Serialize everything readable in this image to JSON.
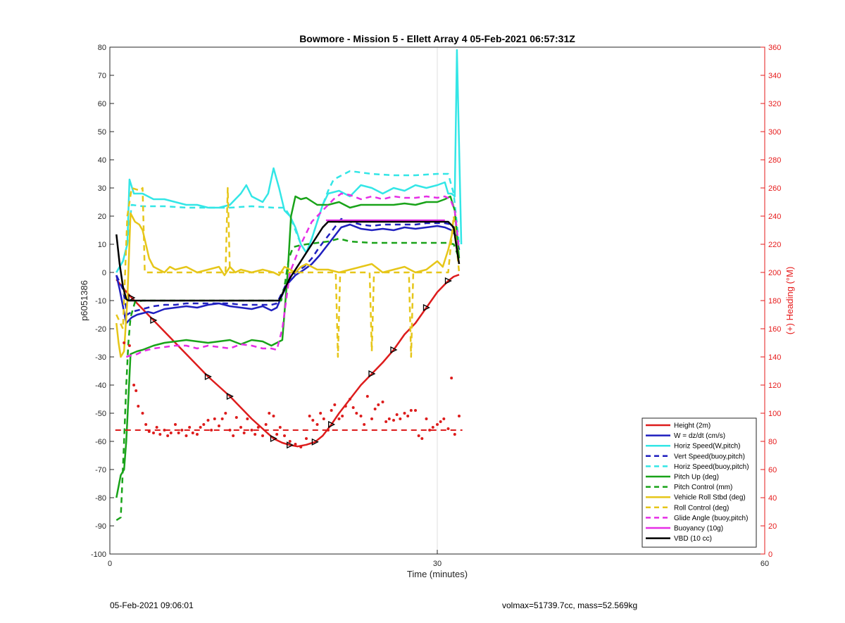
{
  "footer": {
    "left_text": "05-Feb-2021 09:06:01",
    "right_text": "volmax=51739.7cc, mass=52.569kg"
  },
  "chart_data": {
    "type": "line",
    "title": "Bowmore - Mission 5 - Ellett Array 4 05-Feb-2021 06:57:31Z",
    "xlabel": "Time (minutes)",
    "ylabel": "p6051386",
    "ylabel_right": "(+) Heading (°M)",
    "xlim": [
      0,
      60
    ],
    "ylim": [
      -100,
      80
    ],
    "ylim_right": [
      0,
      360
    ],
    "xticks": [
      0,
      30,
      60
    ],
    "yticks": [
      -100,
      -90,
      -80,
      -70,
      -60,
      -50,
      -40,
      -30,
      -20,
      -10,
      0,
      10,
      20,
      30,
      40,
      50,
      60,
      70,
      80
    ],
    "yticks_right": [
      0,
      20,
      40,
      60,
      80,
      100,
      120,
      140,
      160,
      180,
      200,
      220,
      240,
      260,
      280,
      300,
      320,
      340,
      360
    ],
    "grid": "x-only",
    "legend_position": "bottom-right",
    "colors": {
      "red": "#dd1c1c",
      "blue": "#1f1fbf",
      "cyan": "#33e6e6",
      "green": "#19a319",
      "yellow": "#e6c619",
      "magenta": "#e62ee6",
      "black": "#000000",
      "right_axis": "#e61a1a"
    },
    "series": [
      {
        "name": "Height (2m)",
        "color": "#dd1c1c",
        "style": "solid",
        "axis": "left",
        "x": [
          0.6,
          1.2,
          2.0,
          3.0,
          4.0,
          5.0,
          6.0,
          7.0,
          8.0,
          9.0,
          10.0,
          11.0,
          12.0,
          13.0,
          14.0,
          15.0,
          15.8,
          16.5,
          17.2,
          18.0,
          18.8,
          19.5,
          20.3,
          21.0,
          22.0,
          23.0,
          24.0,
          25.0,
          26.0,
          27.0,
          28.0,
          29.0,
          30.0,
          31.0,
          31.5,
          32.0
        ],
        "y": [
          -2.5,
          -5.5,
          -9,
          -13,
          -17,
          -21,
          -25,
          -29,
          -33,
          -37,
          -40.5,
          -44,
          -48,
          -52,
          -55.5,
          -59,
          -60.5,
          -61.3,
          -61.8,
          -61.2,
          -60.2,
          -58,
          -54,
          -50,
          -45,
          -40,
          -36,
          -32,
          -27.5,
          -22,
          -18,
          -12.5,
          -7,
          -3,
          -1.5,
          -0.8
        ]
      },
      {
        "name": "W = dz/dt (cm/s)",
        "color": "#1f1fbf",
        "style": "solid",
        "axis": "left",
        "x": [
          0.6,
          0.9,
          1.2,
          1.5,
          2.0,
          2.5,
          3.0,
          3.5,
          4.0,
          5.0,
          6.0,
          7.0,
          8.0,
          9.0,
          10.0,
          11.0,
          12.0,
          13.0,
          14.0,
          14.8,
          15.3,
          15.8,
          16.3,
          17.0,
          17.8,
          18.5,
          19.2,
          20.0,
          20.6,
          21.2,
          22.0,
          23.0,
          24.0,
          25.0,
          26.0,
          27.0,
          28.0,
          29.0,
          30.0,
          30.7,
          31.3,
          31.7,
          32.0
        ],
        "y": [
          -1,
          -6,
          -12,
          -18,
          -16,
          -15,
          -14.5,
          -14,
          -14.5,
          -13,
          -12.5,
          -12,
          -12.5,
          -11.5,
          -11,
          -12,
          -12.5,
          -13,
          -12,
          -13.5,
          -12.5,
          -8,
          -4,
          -1,
          1,
          3,
          6,
          10,
          13,
          16,
          17,
          15.5,
          15,
          15.5,
          15,
          16,
          15.5,
          16,
          16.5,
          16,
          15,
          13,
          8
        ]
      },
      {
        "name": "Horiz Speed(W,pitch)",
        "color": "#33e6e6",
        "style": "solid",
        "axis": "left",
        "x": [
          0.6,
          1.2,
          1.6,
          1.8,
          2.2,
          3.0,
          4.0,
          5.0,
          6.0,
          7.0,
          8.0,
          9.0,
          10.0,
          11.0,
          12.0,
          12.5,
          13.0,
          14.0,
          14.5,
          15.0,
          15.5,
          16.0,
          16.5,
          17.0,
          17.5,
          18.0,
          18.5,
          19.0,
          19.5,
          20.0,
          21.0,
          22.0,
          23.0,
          24.0,
          25.0,
          26.0,
          27.0,
          28.0,
          29.0,
          30.0,
          30.7,
          31.0,
          31.3,
          31.6,
          31.8,
          32.2
        ],
        "y": [
          0,
          4,
          10,
          33,
          28,
          28,
          26,
          26,
          25,
          24,
          24,
          23,
          23,
          24,
          28,
          31,
          27,
          25,
          28,
          37,
          30,
          22,
          20,
          16,
          10,
          7,
          12,
          18,
          24,
          28,
          29,
          27,
          31,
          30,
          28,
          30,
          29,
          31,
          30,
          31,
          32,
          28,
          28,
          27,
          79,
          10
        ]
      },
      {
        "name": "Vert Speed(buoy,pitch)",
        "color": "#1f1fbf",
        "style": "dashed",
        "axis": "left",
        "x": [
          0.6,
          1.2,
          1.6,
          2.0,
          2.5,
          3.0,
          4.0,
          5.0,
          6.0,
          7.0,
          8.0,
          9.0,
          10.0,
          11.0,
          12.0,
          13.0,
          14.0,
          14.8,
          15.3,
          15.8,
          16.3,
          17.0,
          17.8,
          18.5,
          19.2,
          20.0,
          20.6,
          21.2,
          22.0,
          23.0,
          24.0,
          25.0,
          26.0,
          27.0,
          28.0,
          29.0,
          30.0,
          30.7,
          31.3,
          31.7,
          32.0
        ],
        "y": [
          -1,
          -6,
          -15,
          -14,
          -13.5,
          -13,
          -12,
          -11.5,
          -11.5,
          -11,
          -11,
          -11,
          -11,
          -11,
          -11.5,
          -11.5,
          -11.5,
          -11.5,
          -11,
          -7,
          -3,
          0,
          2,
          5,
          9,
          13,
          16,
          19,
          18,
          17,
          16.5,
          17,
          17,
          17,
          17,
          17.5,
          17.5,
          17.5,
          17,
          14,
          8
        ]
      },
      {
        "name": "Horiz Speed(buoy,pitch)",
        "color": "#33e6e6",
        "style": "dashed",
        "axis": "left",
        "x": [
          0.6,
          1.2,
          1.6,
          2.0,
          3.0,
          5.0,
          7.0,
          9.0,
          11.0,
          13.0,
          15.0,
          16.0,
          16.5,
          17.0,
          17.5,
          18.0,
          18.5,
          19.0,
          19.5,
          20.0,
          20.5,
          21.0,
          22.0,
          23.0,
          24.0,
          26.0,
          28.0,
          30.0,
          31.0,
          31.5,
          32.0
        ],
        "y": [
          0,
          4,
          10,
          24,
          23.5,
          23.5,
          23,
          23,
          23,
          23.5,
          23,
          23,
          20,
          15,
          10,
          7,
          12,
          18,
          24,
          29,
          33,
          34,
          36,
          35.5,
          35,
          34.5,
          34.5,
          35,
          35,
          28,
          10
        ]
      },
      {
        "name": "Pitch Up (deg)",
        "color": "#19a319",
        "style": "solid",
        "axis": "left",
        "x": [
          0.6,
          1.0,
          1.3,
          1.5,
          1.7,
          1.9,
          2.5,
          3.0,
          4.0,
          5.0,
          6.0,
          7.0,
          8.0,
          9.0,
          10.0,
          11.0,
          12.0,
          13.0,
          14.0,
          14.8,
          15.3,
          15.8,
          16.3,
          16.6,
          17.0,
          17.5,
          18.0,
          19.0,
          20.0,
          21.0,
          22.0,
          23.0,
          24.0,
          25.0,
          26.0,
          27.0,
          28.0,
          29.0,
          30.0,
          30.7,
          31.2,
          31.6,
          32.0
        ],
        "y": [
          -80,
          -72,
          -70,
          -60,
          -45,
          -29,
          -28,
          -27.5,
          -26,
          -25,
          -24.5,
          -24,
          -24.5,
          -25,
          -24.5,
          -24,
          -25.5,
          -24,
          -24.5,
          -26,
          -25,
          -24,
          0,
          20,
          27,
          26,
          26.5,
          24,
          24,
          25,
          23,
          24,
          24,
          24,
          24,
          24.5,
          24,
          25,
          25,
          26,
          27,
          22,
          5
        ]
      },
      {
        "name": "Pitch Control (mm)",
        "color": "#19a319",
        "style": "dashed",
        "axis": "left",
        "x": [
          0.6,
          1.0,
          1.3,
          1.5,
          1.7,
          1.9,
          2.3,
          3.0,
          6.0,
          9.0,
          12.0,
          15.0,
          15.7,
          16.0,
          16.4,
          16.8,
          17.3,
          18.0,
          19.0,
          20.0,
          21.0,
          22.0,
          24.0,
          26.0,
          28.0,
          30.0,
          31.0,
          31.5,
          32.0
        ],
        "y": [
          -88,
          -87,
          -60,
          -40,
          -25,
          -16,
          -10.5,
          -10,
          -10,
          -10,
          -10,
          -10,
          -10,
          -5,
          5,
          9,
          9.5,
          10,
          10.5,
          11,
          12,
          11,
          10.5,
          10.5,
          10.5,
          10.5,
          10.5,
          10,
          5
        ]
      },
      {
        "name": "Vehicle Roll Stbd (deg)",
        "color": "#e6c619",
        "style": "solid",
        "axis": "left",
        "x": [
          0.6,
          0.8,
          1.0,
          1.3,
          1.6,
          1.9,
          2.3,
          2.7,
          3.0,
          3.3,
          3.6,
          4.0,
          4.5,
          5.0,
          5.5,
          6.0,
          7.0,
          8.0,
          9.0,
          10.0,
          10.5,
          11.0,
          11.5,
          12.0,
          13.0,
          14.0,
          15.0,
          15.5,
          16.0,
          16.5,
          17.0,
          17.5,
          18.0,
          19.0,
          20.0,
          21.0,
          22.0,
          23.0,
          24.0,
          25.0,
          26.0,
          27.0,
          28.0,
          29.0,
          30.0,
          30.5,
          31.0,
          31.5,
          32.0
        ],
        "y": [
          -18,
          -25,
          -30,
          -28,
          -10,
          21,
          18,
          17,
          15,
          10,
          5,
          2,
          1,
          0,
          2,
          1,
          2,
          0,
          1,
          2,
          -1,
          2,
          0,
          1,
          0,
          1,
          0,
          -1,
          2,
          1,
          0,
          2,
          3,
          1,
          1,
          0,
          1,
          2,
          3,
          0,
          1,
          2,
          0,
          1,
          4,
          2,
          8,
          16,
          3
        ]
      },
      {
        "name": "Roll Control (deg)",
        "color": "#e6c619",
        "style": "dashed",
        "axis": "left",
        "x": [
          0.6,
          1.2,
          1.6,
          2.0,
          2.8,
          3.0,
          3.2,
          3.5,
          6.0,
          9.0,
          10.6,
          10.8,
          11.0,
          11.3,
          11.8,
          14.0,
          16.0,
          17.5,
          20.0,
          20.7,
          20.9,
          21.1,
          22.0,
          23.8,
          24.0,
          24.2,
          26.0,
          27.0,
          27.4,
          27.6,
          27.8,
          30.0,
          31.0,
          31.5,
          32.0
        ],
        "y": [
          -15,
          -20,
          20,
          30,
          29,
          30,
          0,
          0,
          0,
          0,
          0,
          30,
          0,
          0,
          0,
          0,
          0,
          0,
          0,
          0,
          -30,
          0,
          0,
          0,
          -28,
          0,
          0,
          0,
          0,
          -30,
          0,
          0,
          0,
          20,
          0
        ]
      },
      {
        "name": "Glide Angle (buoy,pitch)",
        "color": "#e62ee6",
        "style": "dashed",
        "axis": "left",
        "x": [
          1.5,
          1.9,
          2.5,
          3.0,
          4.0,
          5.0,
          6.0,
          7.0,
          8.0,
          9.0,
          10.0,
          11.0,
          12.0,
          13.0,
          14.0,
          14.8,
          15.3,
          15.8,
          16.5,
          17.5,
          18.5,
          19.5,
          20.5,
          21.2,
          22.0,
          23.0,
          24.0,
          25.0,
          26.0,
          27.0,
          28.0,
          29.0,
          30.0,
          30.7,
          31.2,
          31.6,
          32.0
        ],
        "y": [
          -30,
          -29.5,
          -29,
          -28,
          -27,
          -26.5,
          -26,
          -26,
          -27,
          -26,
          -26.5,
          -27,
          -25.5,
          -26,
          -27,
          -27,
          -27.5,
          -20,
          0,
          10,
          18,
          22,
          26,
          28,
          27.5,
          26,
          27,
          26,
          27,
          26.5,
          26.5,
          27,
          26.5,
          27,
          26,
          22,
          8
        ]
      },
      {
        "name": "Buoyancy (10g)",
        "color": "#e62ee6",
        "style": "solid",
        "axis": "left",
        "x": [
          19.8,
          30.7
        ],
        "y": [
          18.5,
          18.5
        ]
      },
      {
        "name": "VBD (10 cc)",
        "color": "#000000",
        "style": "solid",
        "axis": "left",
        "x": [
          0.6,
          0.9,
          1.2,
          1.5,
          1.7,
          3.0,
          6.0,
          9.0,
          12.0,
          15.0,
          15.5,
          16.0,
          16.5,
          17.0,
          17.5,
          18.0,
          18.5,
          19.0,
          19.5,
          20.0,
          22.0,
          25.0,
          28.0,
          31.0,
          31.5,
          31.8,
          32.0
        ],
        "y": [
          13.5,
          3,
          -5,
          -9.5,
          -10,
          -10,
          -10,
          -10,
          -10,
          -10,
          -10,
          -6,
          -2,
          1,
          4,
          7,
          10,
          13,
          16,
          18,
          18,
          18,
          18,
          18,
          16,
          8,
          3
        ]
      }
    ],
    "heading_points": {
      "name": "Heading",
      "color": "#dd1c1c",
      "axis": "right",
      "x": [
        1.3,
        1.8,
        2.2,
        2.4,
        2.6,
        3.0,
        3.3,
        3.6,
        4.0,
        4.3,
        4.6,
        5.0,
        5.3,
        5.6,
        6.0,
        6.3,
        6.6,
        7.0,
        7.3,
        7.6,
        8.0,
        8.3,
        8.6,
        9.0,
        9.3,
        9.6,
        10.0,
        10.3,
        10.6,
        11.0,
        11.3,
        11.6,
        12.0,
        12.3,
        12.6,
        13.0,
        13.3,
        13.6,
        14.0,
        14.3,
        14.6,
        15.0,
        15.3,
        15.6,
        16.0,
        16.5,
        17.0,
        17.5,
        18.0,
        18.3,
        18.6,
        19.0,
        19.3,
        19.6,
        20.0,
        20.3,
        20.6,
        21.0,
        21.3,
        21.6,
        22.0,
        22.3,
        22.6,
        23.0,
        23.3,
        23.6,
        24.0,
        24.3,
        24.6,
        25.0,
        25.3,
        25.6,
        26.0,
        26.3,
        26.6,
        27.0,
        27.3,
        27.6,
        28.0,
        28.3,
        28.6,
        29.0,
        29.3,
        29.6,
        30.0,
        30.3,
        30.6,
        31.0,
        31.3,
        31.6,
        32.0
      ],
      "y": [
        150,
        148,
        120,
        116,
        105,
        100,
        92,
        87,
        86,
        90,
        85,
        88,
        84,
        86,
        92,
        86,
        88,
        84,
        90,
        86,
        85,
        90,
        92,
        95,
        88,
        96,
        91,
        96,
        100,
        88,
        84,
        97,
        90,
        86,
        96,
        88,
        85,
        90,
        84,
        92,
        100,
        98,
        85,
        90,
        84,
        80,
        78,
        76,
        82,
        98,
        95,
        92,
        100,
        96,
        88,
        102,
        106,
        96,
        98,
        105,
        110,
        104,
        100,
        98,
        92,
        112,
        96,
        103,
        106,
        108,
        94,
        96,
        95,
        99,
        96,
        100,
        98,
        102,
        102,
        84,
        82,
        96,
        88,
        90,
        92,
        94,
        96,
        89,
        125,
        85,
        98
      ],
      "mean_line_y": 88
    }
  }
}
